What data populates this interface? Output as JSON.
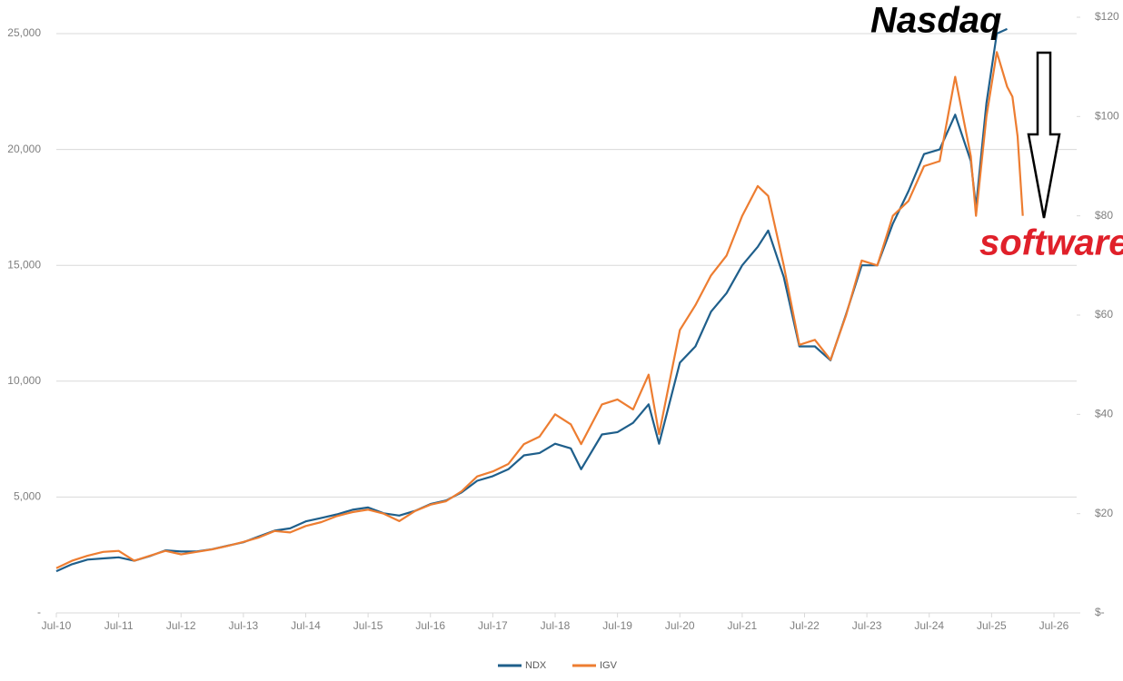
{
  "chart_data": {
    "type": "line",
    "x": [
      "2010-07",
      "2010-10",
      "2011-01",
      "2011-04",
      "2011-07",
      "2011-10",
      "2012-01",
      "2012-04",
      "2012-07",
      "2012-10",
      "2013-01",
      "2013-04",
      "2013-07",
      "2013-10",
      "2014-01",
      "2014-04",
      "2014-07",
      "2014-10",
      "2015-01",
      "2015-04",
      "2015-07",
      "2015-10",
      "2016-01",
      "2016-04",
      "2016-07",
      "2016-10",
      "2017-01",
      "2017-04",
      "2017-07",
      "2017-10",
      "2018-01",
      "2018-04",
      "2018-07",
      "2018-10",
      "2018-12",
      "2019-04",
      "2019-07",
      "2019-10",
      "2020-01",
      "2020-03",
      "2020-07",
      "2020-10",
      "2021-01",
      "2021-04",
      "2021-07",
      "2021-10",
      "2021-12",
      "2022-03",
      "2022-06",
      "2022-09",
      "2022-12",
      "2023-03",
      "2023-06",
      "2023-09",
      "2023-12",
      "2024-03",
      "2024-06",
      "2024-09",
      "2024-12",
      "2025-03",
      "2025-04",
      "2025-06",
      "2025-08",
      "2025-10",
      "2025-11",
      "2025-12",
      "2026-01"
    ],
    "series": [
      {
        "name": "NDX",
        "color": "#1f5f8b",
        "axis": "y",
        "values": [
          1800,
          2100,
          2300,
          2350,
          2400,
          2250,
          2450,
          2700,
          2650,
          2650,
          2750,
          2900,
          3050,
          3300,
          3550,
          3650,
          3950,
          4100,
          4250,
          4450,
          4550,
          4300,
          4200,
          4400,
          4700,
          4850,
          5200,
          5700,
          5900,
          6200,
          6800,
          6900,
          7300,
          7100,
          6200,
          7700,
          7800,
          8200,
          9000,
          7300,
          10800,
          11500,
          13000,
          13800,
          15000,
          15800,
          16500,
          14500,
          11500,
          11500,
          10900,
          12900,
          15000,
          15000,
          16800,
          18200,
          19800,
          20000,
          21500,
          19500,
          17500,
          22000,
          25000,
          25200,
          null,
          null,
          null
        ]
      },
      {
        "name": "IGV",
        "color": "#ed7d31",
        "axis": "y2",
        "values": [
          9,
          10.5,
          11.5,
          12.3,
          12.5,
          10.5,
          11.5,
          12.5,
          11.8,
          12.3,
          12.8,
          13.5,
          14.3,
          15.2,
          16.5,
          16.2,
          17.5,
          18.3,
          19.5,
          20.3,
          20.8,
          20,
          18.5,
          20.5,
          21.8,
          22.5,
          24.5,
          27.5,
          28.5,
          30,
          34,
          35.5,
          40,
          38,
          34,
          42,
          43,
          41,
          48,
          36,
          57,
          62,
          68,
          72,
          80,
          86,
          84,
          70,
          54,
          55,
          51,
          60,
          71,
          70,
          80,
          83,
          90,
          91,
          108,
          92,
          80,
          100,
          113,
          106,
          104,
          96,
          80
        ]
      }
    ],
    "xlim": [
      "2010-07",
      "2026-07"
    ],
    "xticks": [
      {
        "value": "2010-07",
        "label": "Jul-10"
      },
      {
        "value": "2011-07",
        "label": "Jul-11"
      },
      {
        "value": "2012-07",
        "label": "Jul-12"
      },
      {
        "value": "2013-07",
        "label": "Jul-13"
      },
      {
        "value": "2014-07",
        "label": "Jul-14"
      },
      {
        "value": "2015-07",
        "label": "Jul-15"
      },
      {
        "value": "2016-07",
        "label": "Jul-16"
      },
      {
        "value": "2017-07",
        "label": "Jul-17"
      },
      {
        "value": "2018-07",
        "label": "Jul-18"
      },
      {
        "value": "2019-07",
        "label": "Jul-19"
      },
      {
        "value": "2020-07",
        "label": "Jul-20"
      },
      {
        "value": "2021-07",
        "label": "Jul-21"
      },
      {
        "value": "2022-07",
        "label": "Jul-22"
      },
      {
        "value": "2023-07",
        "label": "Jul-23"
      },
      {
        "value": "2024-07",
        "label": "Jul-24"
      },
      {
        "value": "2025-07",
        "label": "Jul-25"
      },
      {
        "value": "2026-07",
        "label": "Jul-26"
      }
    ],
    "ylim": [
      0,
      25000
    ],
    "yticks": [
      {
        "value": 0,
        "label": "-"
      },
      {
        "value": 5000,
        "label": "5,000"
      },
      {
        "value": 10000,
        "label": "10,000"
      },
      {
        "value": 15000,
        "label": "15,000"
      },
      {
        "value": 20000,
        "label": "20,000"
      },
      {
        "value": 25000,
        "label": "25,000"
      }
    ],
    "y2lim": [
      0,
      120
    ],
    "y2ticks": [
      {
        "value": 0,
        "label": "$-"
      },
      {
        "value": 20,
        "label": "$20"
      },
      {
        "value": 40,
        "label": "$40"
      },
      {
        "value": 60,
        "label": "$60"
      },
      {
        "value": 80,
        "label": "$80"
      },
      {
        "value": 100,
        "label": "$100"
      },
      {
        "value": 120,
        "label": "$120"
      }
    ],
    "grid": true,
    "legend": "bottom",
    "annotations": [
      {
        "text": "Nasdaq",
        "color": "#000000"
      },
      {
        "text": "software",
        "color": "#e0202a"
      }
    ]
  }
}
